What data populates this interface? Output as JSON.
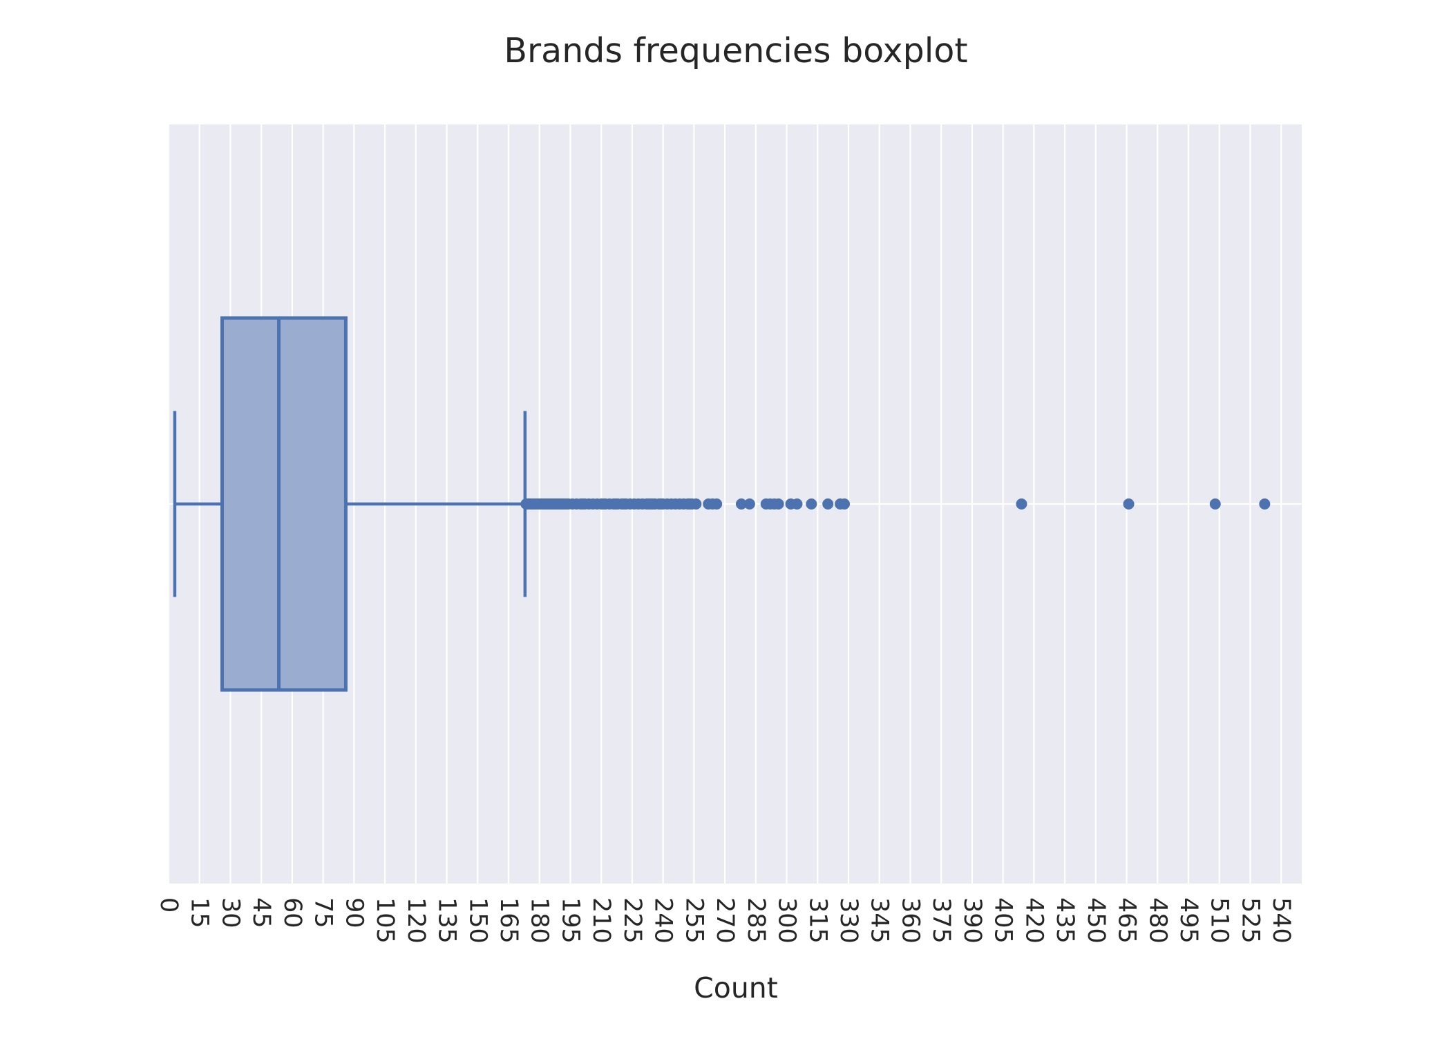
{
  "chart_data": {
    "type": "box",
    "orientation": "horizontal",
    "title": "Brands frequencies boxplot",
    "xlabel": "Count",
    "ylabel": "",
    "xlim": [
      0,
      550
    ],
    "xticks": [
      0,
      15,
      30,
      45,
      60,
      75,
      90,
      105,
      120,
      135,
      150,
      165,
      180,
      195,
      210,
      225,
      240,
      255,
      270,
      285,
      300,
      315,
      330,
      345,
      360,
      375,
      390,
      405,
      420,
      435,
      450,
      465,
      480,
      495,
      510,
      525,
      540
    ],
    "tick_rotation": 90,
    "grid": true,
    "box": {
      "whisker_low": 3,
      "q1": 26,
      "median": 53.5,
      "q3": 86,
      "whisker_high": 173
    },
    "outliers": [
      173.5,
      174,
      174.5,
      175,
      175.5,
      176,
      176.5,
      177,
      178,
      179,
      180,
      181,
      182,
      183,
      184,
      185,
      186,
      187,
      188,
      189,
      190,
      191,
      192,
      193,
      194,
      196,
      198,
      200,
      201,
      202,
      204,
      206,
      208,
      210,
      211,
      212,
      214,
      216,
      217,
      218,
      220,
      221,
      222,
      224,
      226,
      228,
      230,
      232,
      233,
      234,
      235,
      236,
      238,
      239,
      240,
      242,
      244,
      246,
      248,
      250,
      252,
      253,
      254,
      256,
      262,
      264,
      266,
      278,
      282,
      290,
      292,
      294,
      296,
      302,
      305,
      312,
      320,
      326,
      328,
      414,
      466,
      508,
      532
    ],
    "colors": {
      "box_fill": "#9aadd1",
      "box_edge": "#4c72b0",
      "plot_background": "#eaeaf2",
      "grid": "#ffffff",
      "text": "#262626"
    }
  }
}
